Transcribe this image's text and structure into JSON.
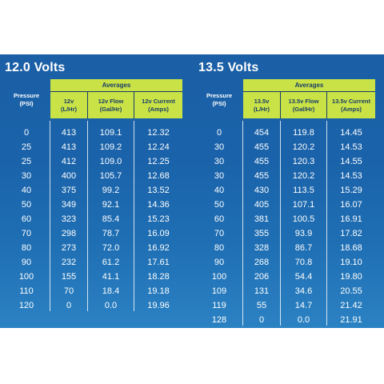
{
  "tables": [
    {
      "title": "12.0 Volts",
      "averages_label": "Averages",
      "headers": [
        {
          "line1": "Pressure",
          "line2": "(PSI)"
        },
        {
          "line1": "12v",
          "line2": "(L/Hr)"
        },
        {
          "line1": "12v Flow",
          "line2": "(Gal/Hr)"
        },
        {
          "line1": "12v Current",
          "line2": "(Amps)"
        }
      ],
      "rows": [
        [
          "0",
          "413",
          "109.1",
          "12.32"
        ],
        [
          "25",
          "413",
          "109.2",
          "12.24"
        ],
        [
          "25",
          "412",
          "109.0",
          "12.25"
        ],
        [
          "30",
          "400",
          "105.7",
          "12.68"
        ],
        [
          "40",
          "375",
          "99.2",
          "13.52"
        ],
        [
          "50",
          "349",
          "92.1",
          "14.36"
        ],
        [
          "60",
          "323",
          "85.4",
          "15.23"
        ],
        [
          "70",
          "298",
          "78.7",
          "16.09"
        ],
        [
          "80",
          "273",
          "72.0",
          "16.92"
        ],
        [
          "90",
          "232",
          "61.2",
          "17.61"
        ],
        [
          "100",
          "155",
          "41.1",
          "18.28"
        ],
        [
          "110",
          "70",
          "18.4",
          "19.18"
        ],
        [
          "120",
          "0",
          "0.0",
          "19.96"
        ]
      ]
    },
    {
      "title": "13.5 Volts",
      "averages_label": "Averages",
      "headers": [
        {
          "line1": "Pressure",
          "line2": "(PSI)"
        },
        {
          "line1": "13.5v",
          "line2": "(L/Hr)"
        },
        {
          "line1": "13.5v Flow",
          "line2": "(Gal/Hr)"
        },
        {
          "line1": "13.5v Current",
          "line2": "(Amps)"
        }
      ],
      "rows": [
        [
          "0",
          "454",
          "119.8",
          "14.45"
        ],
        [
          "30",
          "455",
          "120.2",
          "14.53"
        ],
        [
          "30",
          "455",
          "120.3",
          "14.55"
        ],
        [
          "30",
          "455",
          "120.2",
          "14.53"
        ],
        [
          "40",
          "430",
          "113.5",
          "15.29"
        ],
        [
          "50",
          "405",
          "107.1",
          "16.07"
        ],
        [
          "60",
          "381",
          "100.5",
          "16.91"
        ],
        [
          "70",
          "355",
          "93.9",
          "17.82"
        ],
        [
          "80",
          "328",
          "86.7",
          "18.68"
        ],
        [
          "90",
          "268",
          "70.8",
          "19.10"
        ],
        [
          "100",
          "206",
          "54.4",
          "19.80"
        ],
        [
          "109",
          "131",
          "34.6",
          "20.55"
        ],
        [
          "119",
          "55",
          "14.7",
          "21.42"
        ],
        [
          "128",
          "0",
          "0.0",
          "21.91"
        ]
      ]
    }
  ],
  "colors": {
    "panel_blue": "#1b5fa6",
    "header_green": "#c9e245",
    "header_text": "#1a3d6b",
    "body_text": "#ffffff"
  }
}
